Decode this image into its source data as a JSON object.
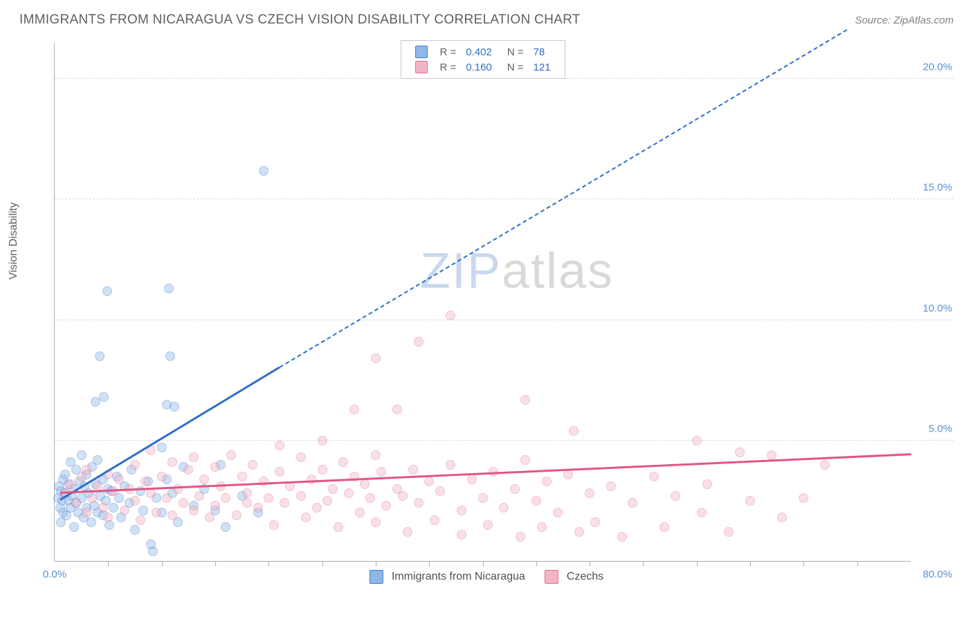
{
  "title": "IMMIGRANTS FROM NICARAGUA VS CZECH VISION DISABILITY CORRELATION CHART",
  "source": "Source: ZipAtlas.com",
  "y_axis_label": "Vision Disability",
  "watermark_a": "ZIP",
  "watermark_b": "atlas",
  "watermark_color_a": "#c9d8ee",
  "watermark_color_b": "#d9d9d9",
  "chart": {
    "type": "scatter",
    "xlim": [
      0,
      80
    ],
    "ylim": [
      0,
      21.5
    ],
    "background_color": "#ffffff",
    "grid_color": "#d8d8d8",
    "axis_color": "#b0b0b0",
    "tick_label_color": "#5b8fd6",
    "y_ticks": [
      5.0,
      10.0,
      15.0,
      20.0
    ],
    "y_tick_labels": [
      "5.0%",
      "10.0%",
      "15.0%",
      "20.0%"
    ],
    "x_ticks_minor": [
      5,
      10,
      15,
      20,
      25,
      30,
      35,
      40,
      45,
      50,
      55,
      60,
      65,
      70,
      75
    ],
    "x_tick_left": "0.0%",
    "x_tick_right": "80.0%",
    "marker_radius": 7,
    "marker_opacity": 0.42
  },
  "series": [
    {
      "name": "Immigrants from Nicaragua",
      "fill_color": "#8fb8e8",
      "stroke_color": "#3b79c9",
      "line_color": "#2e6fc7",
      "R": "0.402",
      "N": "78",
      "trend": {
        "x1": 0.5,
        "y1": 2.5,
        "x2_solid": 21,
        "y2_solid": 8.0,
        "x2_dash": 74,
        "y2_dash": 22.0
      },
      "points": [
        [
          0.3,
          2.6
        ],
        [
          0.4,
          3.1
        ],
        [
          0.5,
          2.2
        ],
        [
          0.6,
          2.9
        ],
        [
          0.6,
          1.6
        ],
        [
          0.7,
          2.5
        ],
        [
          0.8,
          3.4
        ],
        [
          0.8,
          2.0
        ],
        [
          1.0,
          2.8
        ],
        [
          1.0,
          3.6
        ],
        [
          1.1,
          1.9
        ],
        [
          1.3,
          2.5
        ],
        [
          1.3,
          3.2
        ],
        [
          1.5,
          2.2
        ],
        [
          1.5,
          4.1
        ],
        [
          1.6,
          2.7
        ],
        [
          1.8,
          3.0
        ],
        [
          1.8,
          1.4
        ],
        [
          2.0,
          2.4
        ],
        [
          2.0,
          3.8
        ],
        [
          2.2,
          2.0
        ],
        [
          2.3,
          3.3
        ],
        [
          2.5,
          2.6
        ],
        [
          2.5,
          4.4
        ],
        [
          2.7,
          1.8
        ],
        [
          2.8,
          3.1
        ],
        [
          3.0,
          2.2
        ],
        [
          3.0,
          3.6
        ],
        [
          3.2,
          2.8
        ],
        [
          3.4,
          1.6
        ],
        [
          3.5,
          3.9
        ],
        [
          3.7,
          2.3
        ],
        [
          3.8,
          3.2
        ],
        [
          4.0,
          2.0
        ],
        [
          4.0,
          4.2
        ],
        [
          4.3,
          2.7
        ],
        [
          4.5,
          1.9
        ],
        [
          4.5,
          3.4
        ],
        [
          4.8,
          2.5
        ],
        [
          5.0,
          3.0
        ],
        [
          5.1,
          1.5
        ],
        [
          5.3,
          2.9
        ],
        [
          5.5,
          2.2
        ],
        [
          5.8,
          3.5
        ],
        [
          6.0,
          2.6
        ],
        [
          6.2,
          1.8
        ],
        [
          6.5,
          3.1
        ],
        [
          7.0,
          2.4
        ],
        [
          7.2,
          3.8
        ],
        [
          7.5,
          1.3
        ],
        [
          8.0,
          2.9
        ],
        [
          8.3,
          2.1
        ],
        [
          8.7,
          3.3
        ],
        [
          9.0,
          0.7
        ],
        [
          9.5,
          2.6
        ],
        [
          10.0,
          2.0
        ],
        [
          10.0,
          4.7
        ],
        [
          10.5,
          3.4
        ],
        [
          11.0,
          2.8
        ],
        [
          11.5,
          1.6
        ],
        [
          12.0,
          3.9
        ],
        [
          13.0,
          2.3
        ],
        [
          14.0,
          3.0
        ],
        [
          15.0,
          2.1
        ],
        [
          15.5,
          4.0
        ],
        [
          16.0,
          1.4
        ],
        [
          17.5,
          2.7
        ],
        [
          19.0,
          2.0
        ],
        [
          3.8,
          6.6
        ],
        [
          4.2,
          8.5
        ],
        [
          10.5,
          6.5
        ],
        [
          10.8,
          8.5
        ],
        [
          4.9,
          11.2
        ],
        [
          10.7,
          11.3
        ],
        [
          19.5,
          16.2
        ],
        [
          9.2,
          0.4
        ],
        [
          4.6,
          6.8
        ],
        [
          11.2,
          6.4
        ]
      ]
    },
    {
      "name": "Czechs",
      "fill_color": "#f2b5c4",
      "stroke_color": "#e36d95",
      "line_color": "#e25583",
      "R": "0.160",
      "N": "121",
      "trend": {
        "x1": 0.5,
        "y1": 2.8,
        "x2_solid": 80,
        "y2_solid": 4.4,
        "x2_dash": 80,
        "y2_dash": 4.4
      },
      "points": [
        [
          1.0,
          2.8
        ],
        [
          1.5,
          3.2
        ],
        [
          2.0,
          2.4
        ],
        [
          2.5,
          3.5
        ],
        [
          3.0,
          2.0
        ],
        [
          3.0,
          3.8
        ],
        [
          3.5,
          2.6
        ],
        [
          4.0,
          3.1
        ],
        [
          4.5,
          2.2
        ],
        [
          5.0,
          3.6
        ],
        [
          5.0,
          1.8
        ],
        [
          5.5,
          2.9
        ],
        [
          6.0,
          3.4
        ],
        [
          6.5,
          2.1
        ],
        [
          7.0,
          3.0
        ],
        [
          7.5,
          2.5
        ],
        [
          7.5,
          4.0
        ],
        [
          8.0,
          1.7
        ],
        [
          8.5,
          3.3
        ],
        [
          9.0,
          2.8
        ],
        [
          9.0,
          4.6
        ],
        [
          9.5,
          2.0
        ],
        [
          10.0,
          3.5
        ],
        [
          10.5,
          2.6
        ],
        [
          11.0,
          4.1
        ],
        [
          11.0,
          1.9
        ],
        [
          11.5,
          3.0
        ],
        [
          12.0,
          2.4
        ],
        [
          12.5,
          3.8
        ],
        [
          13.0,
          2.1
        ],
        [
          13.0,
          4.3
        ],
        [
          13.5,
          2.7
        ],
        [
          14.0,
          3.4
        ],
        [
          14.5,
          1.8
        ],
        [
          15.0,
          3.9
        ],
        [
          15.0,
          2.3
        ],
        [
          15.5,
          3.1
        ],
        [
          16.0,
          2.6
        ],
        [
          16.5,
          4.4
        ],
        [
          17.0,
          1.9
        ],
        [
          17.5,
          3.5
        ],
        [
          18.0,
          2.8
        ],
        [
          18.5,
          4.0
        ],
        [
          19.0,
          2.2
        ],
        [
          19.5,
          3.3
        ],
        [
          20.0,
          2.6
        ],
        [
          20.5,
          1.5
        ],
        [
          21.0,
          3.7
        ],
        [
          21.0,
          4.8
        ],
        [
          21.5,
          2.4
        ],
        [
          22.0,
          3.1
        ],
        [
          23.0,
          2.7
        ],
        [
          23.0,
          4.3
        ],
        [
          23.5,
          1.8
        ],
        [
          24.0,
          3.4
        ],
        [
          24.5,
          2.2
        ],
        [
          25.0,
          3.8
        ],
        [
          25.0,
          5.0
        ],
        [
          25.5,
          2.5
        ],
        [
          26.0,
          3.0
        ],
        [
          26.5,
          1.4
        ],
        [
          27.0,
          4.1
        ],
        [
          27.5,
          2.8
        ],
        [
          28.0,
          3.5
        ],
        [
          28.0,
          6.3
        ],
        [
          28.5,
          2.0
        ],
        [
          29.0,
          3.2
        ],
        [
          29.5,
          2.6
        ],
        [
          30.0,
          4.4
        ],
        [
          30.0,
          1.6
        ],
        [
          30.5,
          3.7
        ],
        [
          31.0,
          2.3
        ],
        [
          32.0,
          3.0
        ],
        [
          32.0,
          6.3
        ],
        [
          32.5,
          2.7
        ],
        [
          33.0,
          1.2
        ],
        [
          33.5,
          3.8
        ],
        [
          34.0,
          2.4
        ],
        [
          35.0,
          3.3
        ],
        [
          35.5,
          1.7
        ],
        [
          36.0,
          2.9
        ],
        [
          37.0,
          4.0
        ],
        [
          38.0,
          2.1
        ],
        [
          38.0,
          1.1
        ],
        [
          39.0,
          3.4
        ],
        [
          40.0,
          2.6
        ],
        [
          40.5,
          1.5
        ],
        [
          41.0,
          3.7
        ],
        [
          42.0,
          2.2
        ],
        [
          43.0,
          3.0
        ],
        [
          43.5,
          1.0
        ],
        [
          44.0,
          4.2
        ],
        [
          44.0,
          6.7
        ],
        [
          45.0,
          2.5
        ],
        [
          45.5,
          1.4
        ],
        [
          46.0,
          3.3
        ],
        [
          47.0,
          2.0
        ],
        [
          48.0,
          3.6
        ],
        [
          48.5,
          5.4
        ],
        [
          49.0,
          1.2
        ],
        [
          50.0,
          2.8
        ],
        [
          50.5,
          1.6
        ],
        [
          52.0,
          3.1
        ],
        [
          53.0,
          1.0
        ],
        [
          54.0,
          2.4
        ],
        [
          56.0,
          3.5
        ],
        [
          57.0,
          1.4
        ],
        [
          58.0,
          2.7
        ],
        [
          60.0,
          5.0
        ],
        [
          60.5,
          2.0
        ],
        [
          61.0,
          3.2
        ],
        [
          63.0,
          1.2
        ],
        [
          64.0,
          4.5
        ],
        [
          65.0,
          2.5
        ],
        [
          67.0,
          4.4
        ],
        [
          68.0,
          1.8
        ],
        [
          70.0,
          2.6
        ],
        [
          72.0,
          4.0
        ],
        [
          34.0,
          9.1
        ],
        [
          37.0,
          10.2
        ],
        [
          30.0,
          8.4
        ],
        [
          18.0,
          2.4
        ]
      ]
    }
  ],
  "legend_top": {
    "r_label": "R =",
    "n_label": "N ="
  },
  "legend_bottom_labels": [
    "Immigrants from Nicaragua",
    "Czechs"
  ]
}
